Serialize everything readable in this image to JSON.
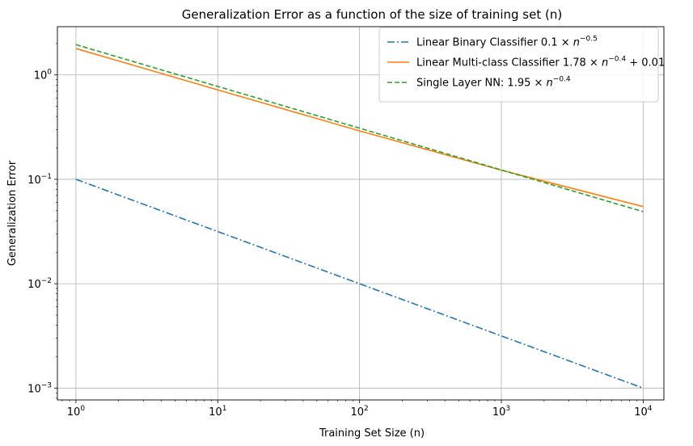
{
  "chart_data": {
    "type": "line",
    "title": "Generalization Error as a function of the size of training set (n)",
    "xlabel": "Training Set Size (n)",
    "ylabel": "Generalization Error",
    "xscale": "log",
    "yscale": "log",
    "xlim": [
      0.74,
      14000
    ],
    "ylim": [
      0.00077,
      2.9
    ],
    "grid": true,
    "legend_position": "top-right",
    "x_ticks": [
      {
        "value": 1,
        "base": "10",
        "exp": "0"
      },
      {
        "value": 10,
        "base": "10",
        "exp": "1"
      },
      {
        "value": 100,
        "base": "10",
        "exp": "2"
      },
      {
        "value": 1000,
        "base": "10",
        "exp": "3"
      },
      {
        "value": 10000,
        "base": "10",
        "exp": "4"
      }
    ],
    "y_ticks": [
      {
        "value": 1,
        "base": "10",
        "exp": "0"
      },
      {
        "value": 0.1,
        "base": "10",
        "exp": "−1"
      },
      {
        "value": 0.01,
        "base": "10",
        "exp": "−2"
      },
      {
        "value": 0.001,
        "base": "10",
        "exp": "−3"
      }
    ],
    "series": [
      {
        "name": "Linear Binary Classifier 0.1 × n^−0.5",
        "legend_parts": [
          "Linear Binary Classifier 0.1 × ",
          "n",
          "−0.5",
          ""
        ],
        "color": "#1f77b4",
        "style": "dashdot",
        "x": [
          1,
          10,
          100,
          1000,
          10000
        ],
        "y": [
          0.1,
          0.0316,
          0.01,
          0.00316,
          0.001
        ]
      },
      {
        "name": "Linear Multi-class Classifier 1.78 × n^−0.4 + 0.01",
        "legend_parts": [
          "Linear Multi-class Classifier 1.78 × ",
          "n",
          "−0.4",
          " + 0.01"
        ],
        "color": "#ff7f0e",
        "style": "solid",
        "x": [
          1,
          10,
          100,
          1000,
          10000
        ],
        "y": [
          1.79,
          0.719,
          0.291,
          0.1223,
          0.0548
        ]
      },
      {
        "name": "Single Layer NN: 1.95 × n^−0.4",
        "legend_parts": [
          "Single Layer NN: 1.95 × ",
          "n",
          "−0.4",
          ""
        ],
        "color": "#2ca02c",
        "style": "dashed",
        "x": [
          1,
          10,
          100,
          1000,
          10000
        ],
        "y": [
          1.95,
          0.776,
          0.309,
          0.123,
          0.049
        ]
      }
    ]
  }
}
